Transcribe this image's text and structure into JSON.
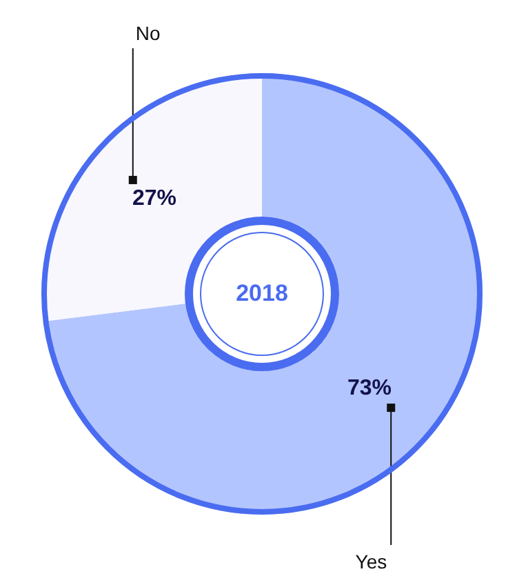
{
  "chart_data": {
    "type": "donut",
    "title": "2018",
    "categories": [
      "Yes",
      "No"
    ],
    "values": [
      73,
      27
    ],
    "value_labels": [
      "73%",
      "27%"
    ],
    "colors": [
      "#b3c5ff",
      "#f8f7fe"
    ],
    "legend": false
  }
}
